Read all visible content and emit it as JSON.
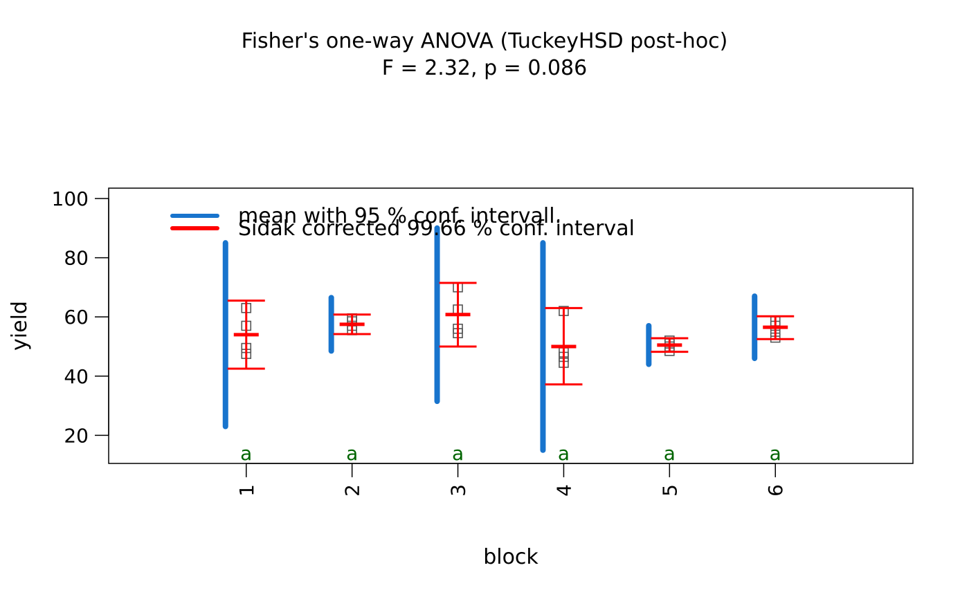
{
  "chart_data": {
    "type": "interval",
    "title": "Fisher's one-way ANOVA (TuckeyHSD post-hoc)",
    "subtitle": "F = 2.32, p = 0.086",
    "xlabel": "block",
    "ylabel": "yield",
    "categories": [
      "1",
      "2",
      "3",
      "4",
      "5",
      "6"
    ],
    "x_range": [
      -0.3,
      7.3
    ],
    "y_range": [
      10.5,
      103.5
    ],
    "y_ticks": [
      20,
      40,
      60,
      80,
      100
    ],
    "legend": {
      "position": "top-left",
      "entries": [
        {
          "label": "mean with 95 % conf. intervall.",
          "color": "#1874CD"
        },
        {
          "label": "Sidak corrected 99.66 % conf. interval",
          "color": "#FF0000"
        }
      ]
    },
    "groups": [
      {
        "category": "1",
        "ci95": [
          23.0,
          85.0
        ],
        "mean": 54.0,
        "sidak": [
          42.5,
          65.5
        ],
        "observations": [
          47.5,
          49.5,
          57.0,
          63.0
        ],
        "letter": "a"
      },
      {
        "category": "2",
        "ci95": [
          48.5,
          66.5
        ],
        "mean": 57.5,
        "sidak": [
          54.2,
          60.8
        ],
        "observations": [
          55.5,
          57.0,
          58.5,
          59.5
        ],
        "letter": "a"
      },
      {
        "category": "3",
        "ci95": [
          31.5,
          90.0
        ],
        "mean": 60.8,
        "sidak": [
          50.0,
          71.5
        ],
        "observations": [
          54.5,
          56.0,
          62.5,
          70.0
        ],
        "letter": "a"
      },
      {
        "category": "4",
        "ci95": [
          15.0,
          85.0
        ],
        "mean": 50.0,
        "sidak": [
          37.2,
          63.0
        ],
        "observations": [
          44.5,
          46.5,
          48.0,
          62.0
        ],
        "letter": "a"
      },
      {
        "category": "5",
        "ci95": [
          44.0,
          57.0
        ],
        "mean": 50.5,
        "sidak": [
          48.2,
          52.8
        ],
        "observations": [
          48.5,
          50.0,
          51.0,
          52.0
        ],
        "letter": "a"
      },
      {
        "category": "6",
        "ci95": [
          46.0,
          67.0
        ],
        "mean": 56.5,
        "sidak": [
          52.5,
          60.2
        ],
        "observations": [
          53.0,
          55.0,
          57.0,
          58.5
        ],
        "letter": "a"
      }
    ],
    "colors": {
      "ci95": "#1874CD",
      "sidak": "#FF0000",
      "points": "#555555",
      "letters": "#006400"
    }
  }
}
